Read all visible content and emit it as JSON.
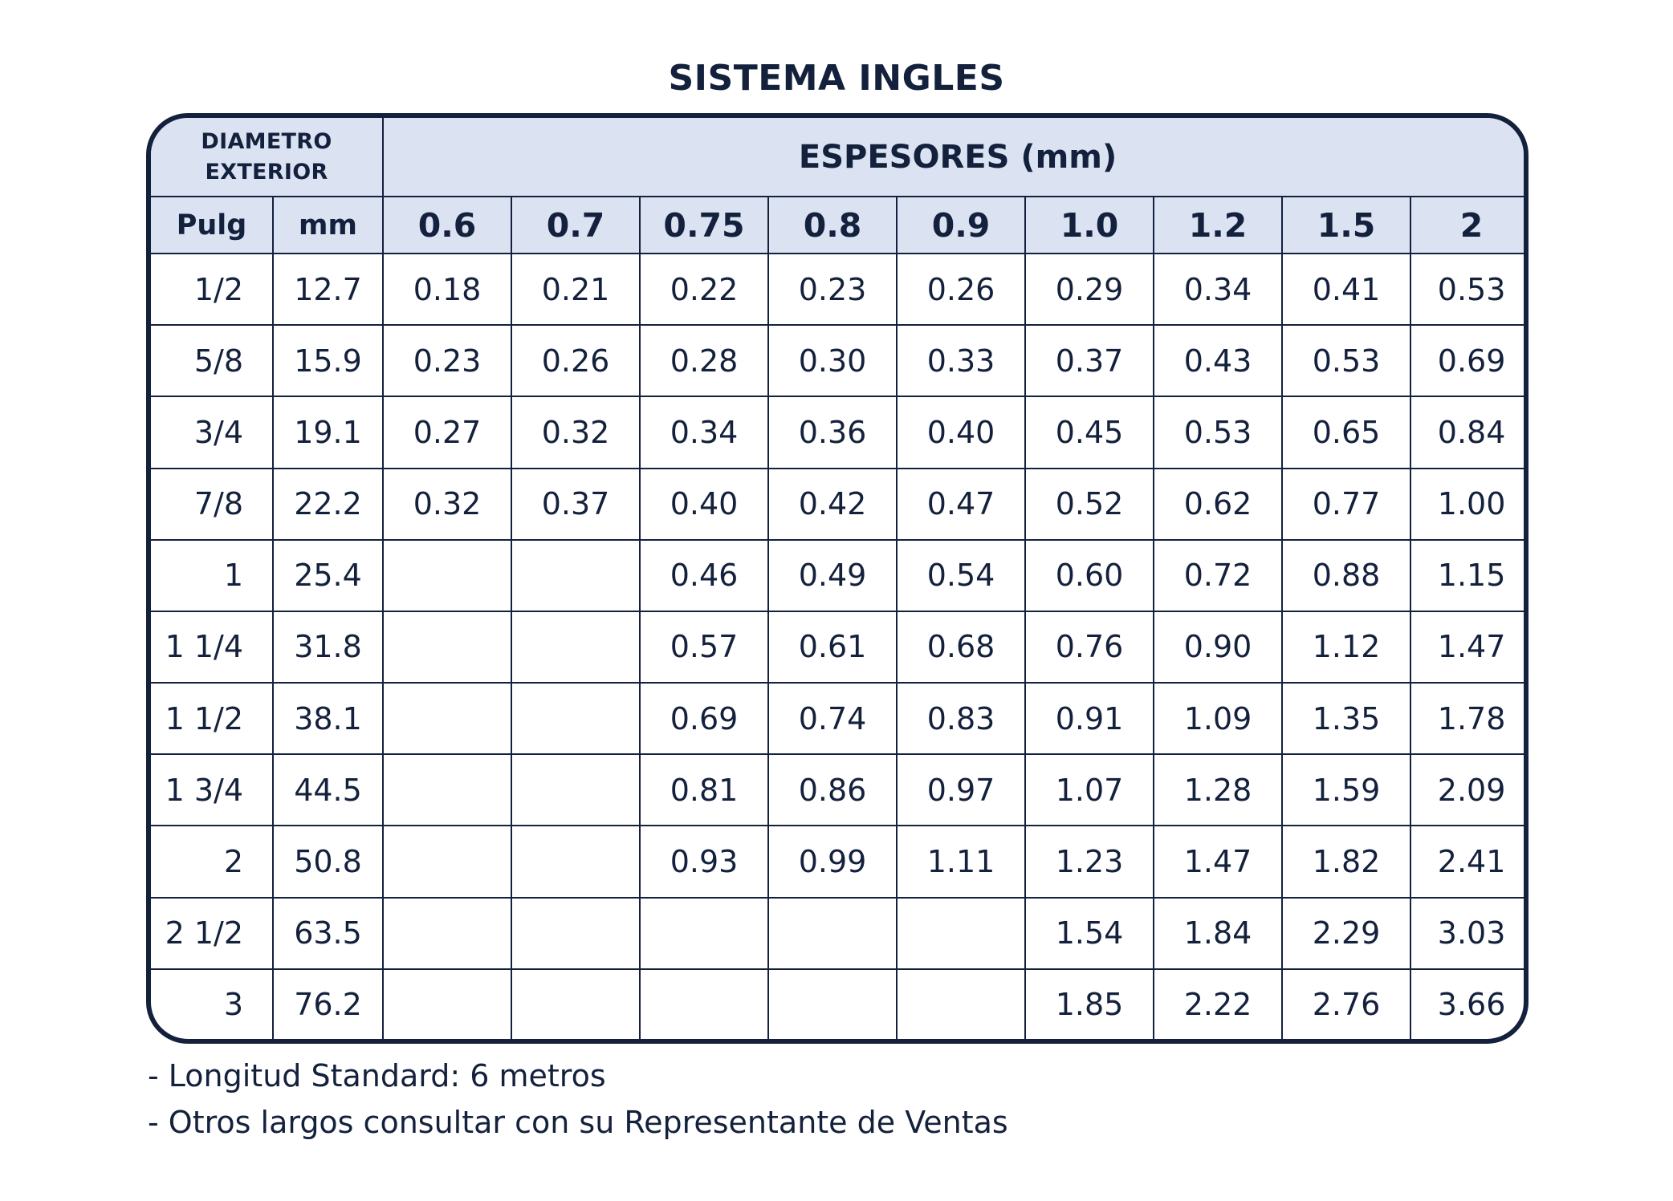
{
  "title": "SISTEMA INGLES",
  "header": {
    "diametro_line1": "DIAMETRO",
    "diametro_line2": "EXTERIOR",
    "espesores": "ESPESORES (mm)",
    "pulg": "Pulg",
    "mm": "mm",
    "thicknesses": [
      "0.6",
      "0.7",
      "0.75",
      "0.8",
      "0.9",
      "1.0",
      "1.2",
      "1.5",
      "2"
    ]
  },
  "rows": [
    {
      "pulg": "1/2",
      "mm": "12.7",
      "values": [
        "0.18",
        "0.21",
        "0.22",
        "0.23",
        "0.26",
        "0.29",
        "0.34",
        "0.41",
        "0.53"
      ]
    },
    {
      "pulg": "5/8",
      "mm": "15.9",
      "values": [
        "0.23",
        "0.26",
        "0.28",
        "0.30",
        "0.33",
        "0.37",
        "0.43",
        "0.53",
        "0.69"
      ]
    },
    {
      "pulg": "3/4",
      "mm": "19.1",
      "values": [
        "0.27",
        "0.32",
        "0.34",
        "0.36",
        "0.40",
        "0.45",
        "0.53",
        "0.65",
        "0.84"
      ]
    },
    {
      "pulg": "7/8",
      "mm": "22.2",
      "values": [
        "0.32",
        "0.37",
        "0.40",
        "0.42",
        "0.47",
        "0.52",
        "0.62",
        "0.77",
        "1.00"
      ]
    },
    {
      "pulg": "1",
      "mm": "25.4",
      "values": [
        "",
        "",
        "0.46",
        "0.49",
        "0.54",
        "0.60",
        "0.72",
        "0.88",
        "1.15"
      ]
    },
    {
      "pulg": "1 1/4",
      "mm": "31.8",
      "values": [
        "",
        "",
        "0.57",
        "0.61",
        "0.68",
        "0.76",
        "0.90",
        "1.12",
        "1.47"
      ]
    },
    {
      "pulg": "1 1/2",
      "mm": "38.1",
      "values": [
        "",
        "",
        "0.69",
        "0.74",
        "0.83",
        "0.91",
        "1.09",
        "1.35",
        "1.78"
      ]
    },
    {
      "pulg": "1 3/4",
      "mm": "44.5",
      "values": [
        "",
        "",
        "0.81",
        "0.86",
        "0.97",
        "1.07",
        "1.28",
        "1.59",
        "2.09"
      ]
    },
    {
      "pulg": "2",
      "mm": "50.8",
      "values": [
        "",
        "",
        "0.93",
        "0.99",
        "1.11",
        "1.23",
        "1.47",
        "1.82",
        "2.41"
      ]
    },
    {
      "pulg": "2 1/2",
      "mm": "63.5",
      "values": [
        "",
        "",
        "",
        "",
        "",
        "1.54",
        "1.84",
        "2.29",
        "3.03"
      ]
    },
    {
      "pulg": "3",
      "mm": "76.2",
      "values": [
        "",
        "",
        "",
        "",
        "",
        "1.85",
        "2.22",
        "2.76",
        "3.66"
      ]
    }
  ],
  "notes": [
    "- Longitud Standard: 6 metros",
    "- Otros largos consultar con su Representante de Ventas"
  ]
}
